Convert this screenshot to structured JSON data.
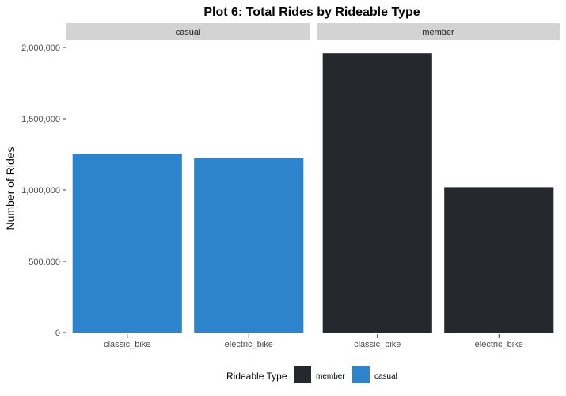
{
  "chart_data": {
    "type": "bar",
    "title": "Plot 6: Total Rides by Rideable Type",
    "xlabel": "",
    "ylabel": "Number of Rides",
    "ylim": [
      0,
      2050000
    ],
    "y_ticks": [
      0,
      500000,
      1000000,
      1500000,
      2000000
    ],
    "y_tick_labels": [
      "0",
      "500,000",
      "1,000,000",
      "1,500,000",
      "2,000,000"
    ],
    "categories": [
      "classic_bike",
      "electric_bike"
    ],
    "grid": false,
    "facets": [
      {
        "label": "casual",
        "series": "casual",
        "values": [
          1255000,
          1225000
        ]
      },
      {
        "label": "member",
        "series": "member",
        "values": [
          1960000,
          1020000
        ]
      }
    ],
    "legend": {
      "title": "Rideable Type",
      "position": "bottom",
      "items": [
        {
          "name": "member",
          "color": "#25292d"
        },
        {
          "name": "casual",
          "color": "#2e84cc"
        }
      ]
    },
    "colors": {
      "casual": "#2e84cc",
      "member": "#25292d",
      "strip_bg": "#d3d3d3"
    }
  }
}
